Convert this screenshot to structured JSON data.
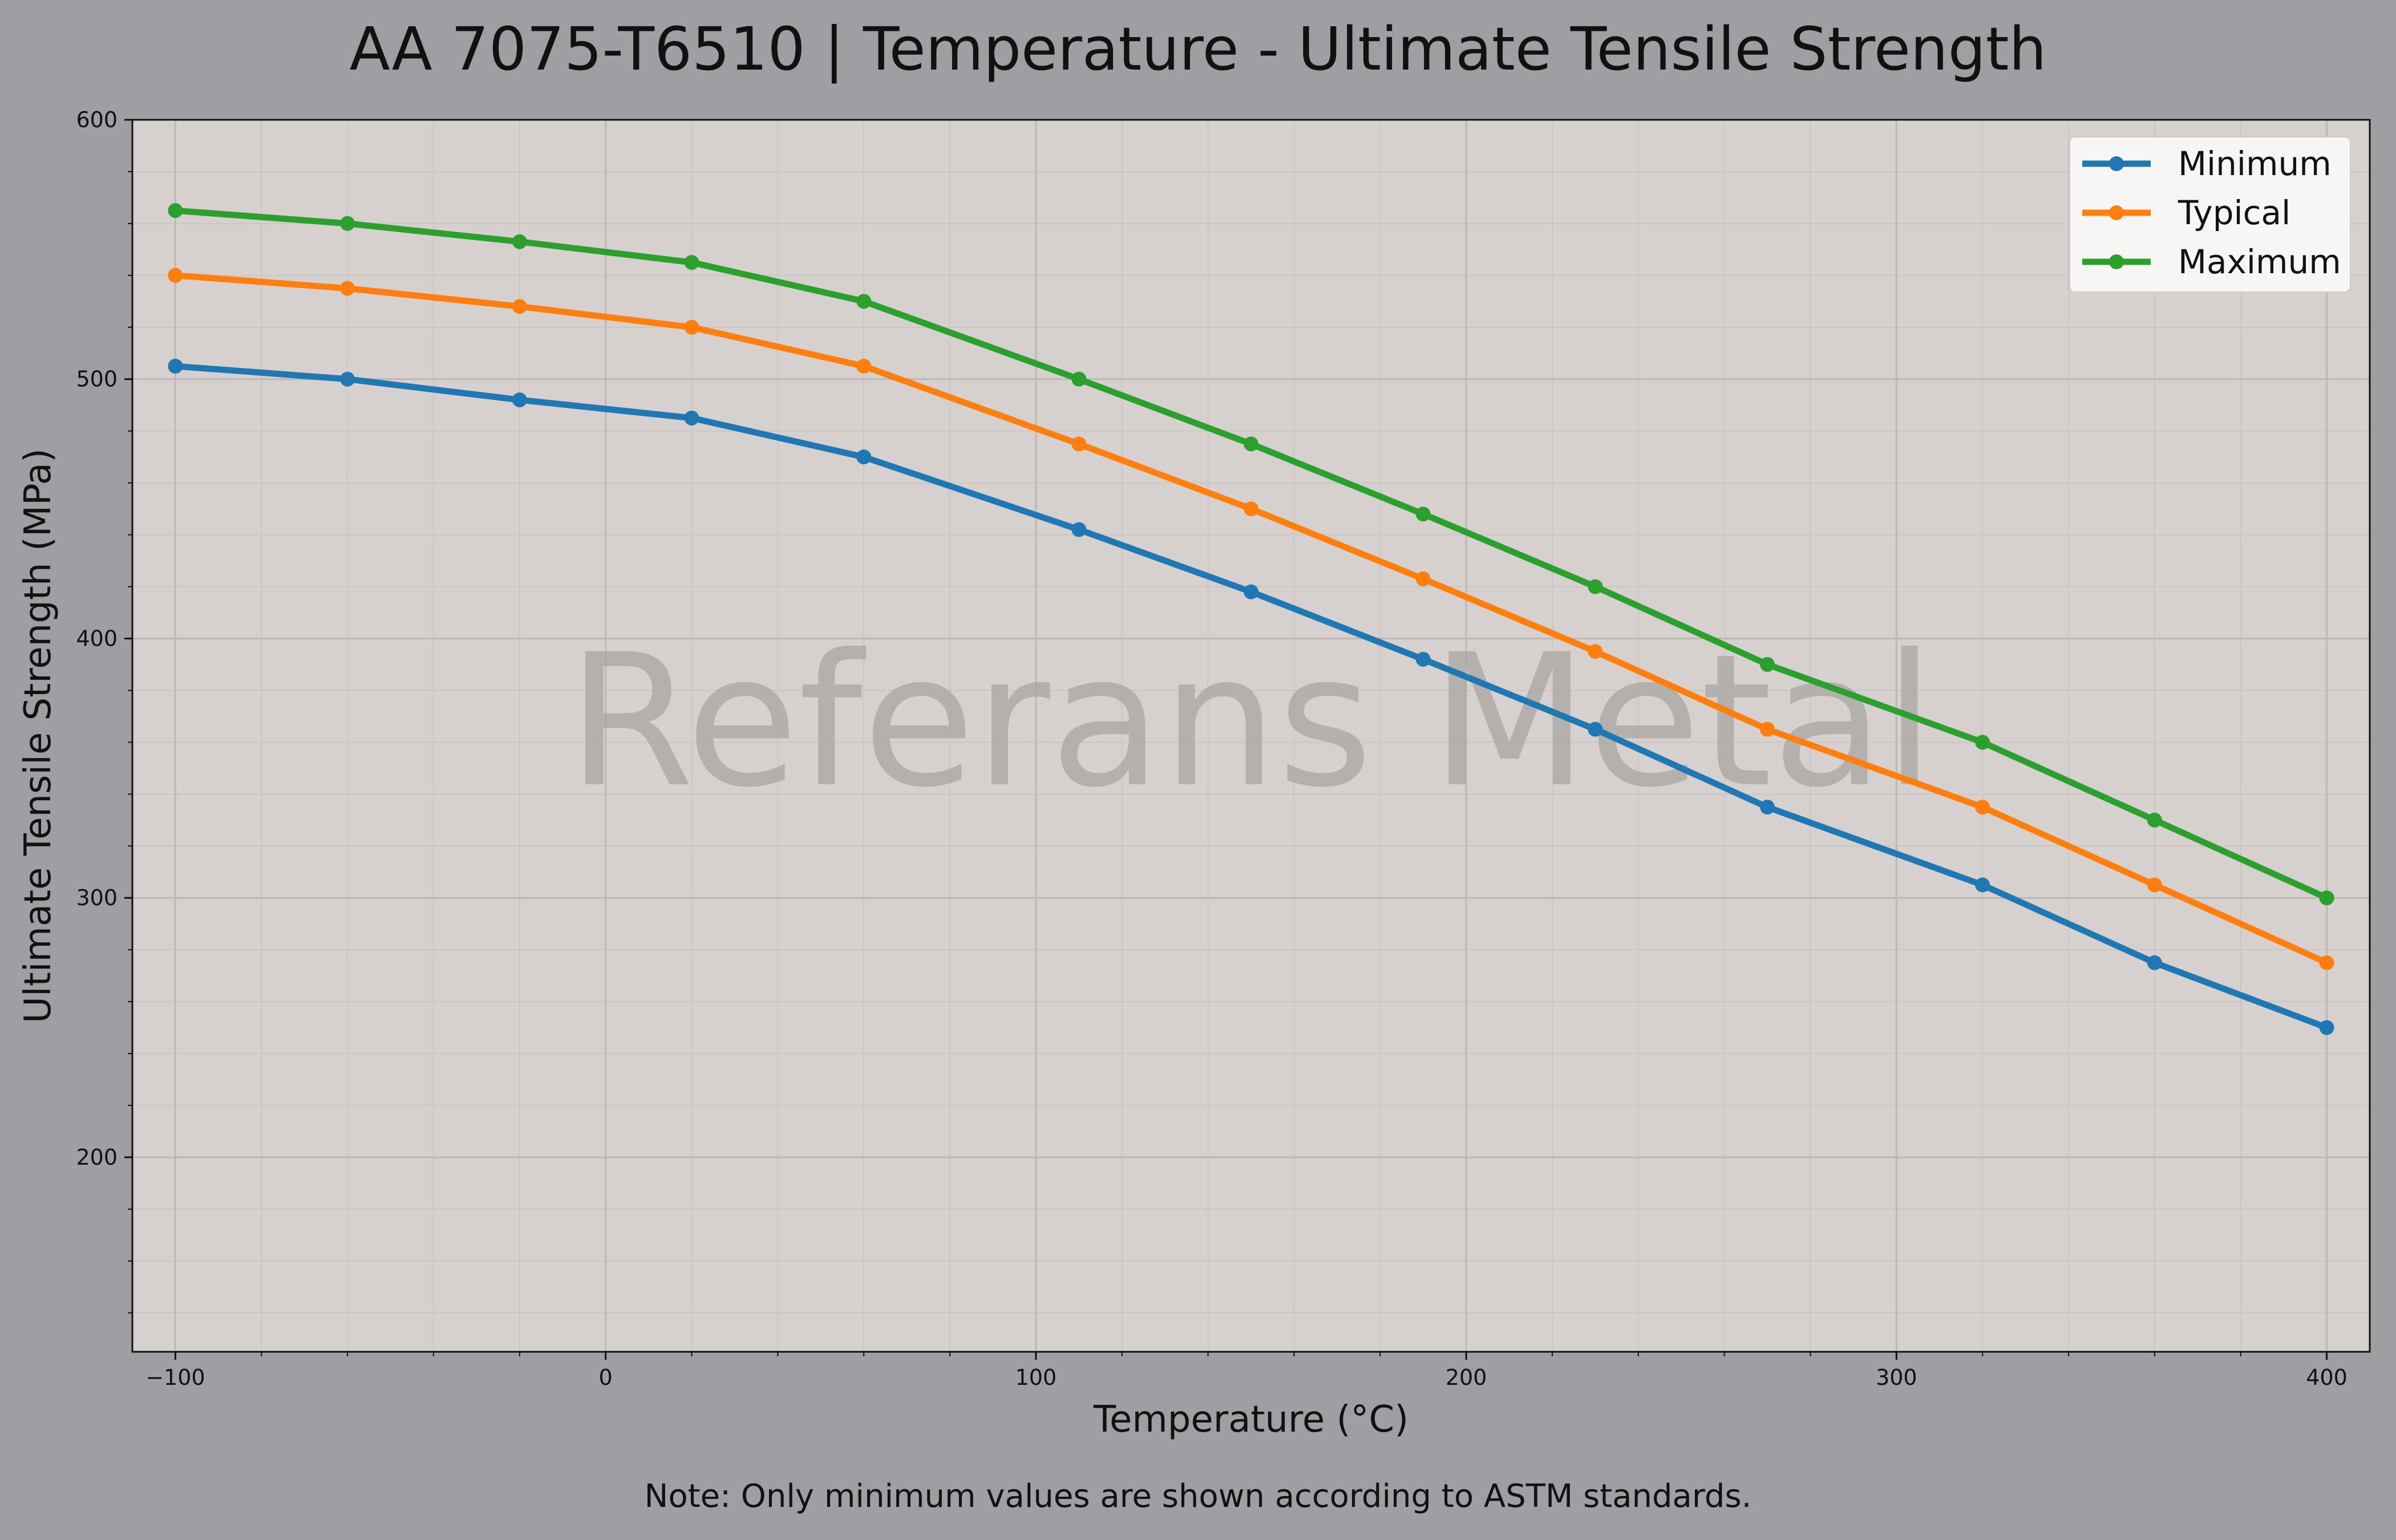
{
  "chart_data": {
    "type": "line",
    "title": "AA 7075-T6510 | Temperature - Ultimate Tensile Strength",
    "xlabel": "Temperature (°C)",
    "ylabel": "Ultimate Tensile Strength (MPa)",
    "note": "Note: Only minimum values are shown according to ASTM standards.",
    "watermark": "Referans Metal",
    "xlim": [
      -110,
      410
    ],
    "ylim": [
      125,
      600
    ],
    "x_ticks": [
      -100,
      0,
      100,
      200,
      300,
      400
    ],
    "y_ticks": [
      200,
      300,
      400,
      500,
      600
    ],
    "grid": true,
    "legend_position": "top-right",
    "x": [
      -100,
      -60,
      -20,
      20,
      60,
      110,
      150,
      190,
      230,
      270,
      320,
      360,
      400
    ],
    "series": [
      {
        "name": "Minimum",
        "color": "#1f77b4",
        "values": [
          505,
          500,
          492,
          485,
          470,
          442,
          418,
          392,
          365,
          335,
          305,
          275,
          250
        ]
      },
      {
        "name": "Typical",
        "color": "#ff7f0e",
        "values": [
          540,
          535,
          528,
          520,
          505,
          475,
          450,
          423,
          395,
          365,
          335,
          305,
          275
        ]
      },
      {
        "name": "Maximum",
        "color": "#2ca02c",
        "values": [
          565,
          560,
          553,
          545,
          530,
          500,
          475,
          448,
          420,
          390,
          360,
          330,
          300
        ]
      }
    ]
  }
}
